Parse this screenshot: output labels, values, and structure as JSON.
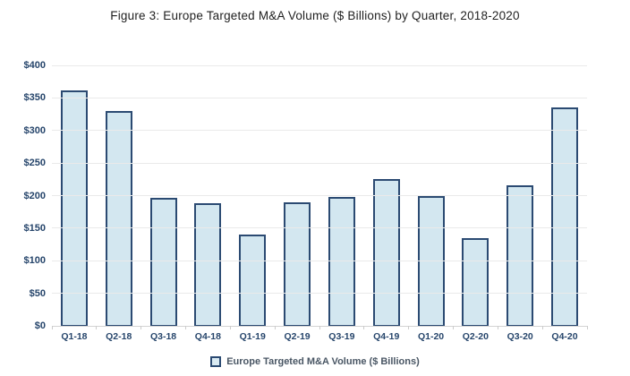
{
  "chart_data": {
    "type": "bar",
    "title": "Figure 3: Europe Targeted M&A Volume ($ Billions) by Quarter, 2018-2020",
    "categories": [
      "Q1-18",
      "Q2-18",
      "Q3-18",
      "Q4-18",
      "Q1-19",
      "Q2-19",
      "Q3-19",
      "Q4-19",
      "Q1-20",
      "Q2-20",
      "Q3-20",
      "Q4-20"
    ],
    "series": [
      {
        "name": "Europe Targeted M&A Volume ($ Billions)",
        "values": [
          361,
          330,
          197,
          189,
          140,
          190,
          198,
          226,
          200,
          135,
          216,
          336
        ]
      }
    ],
    "xlabel": "",
    "ylabel": "",
    "ylim": [
      0,
      400
    ],
    "ytick_interval": 50,
    "ytick_labels_top_to_bottom": [
      "$400",
      "$350",
      "$300",
      "$250",
      "$200",
      "$150",
      "$100",
      "$50",
      "$0"
    ],
    "grid": "horizontal",
    "legend_position": "bottom-center",
    "colors": {
      "bar_fill": "#D3E7F0",
      "bar_border": "#2B4A72",
      "axis_label_text": "#26456B",
      "title_text": "#1F1F1F",
      "legend_text": "#495664",
      "gridline": "#EAEAEA",
      "axis_line": "#D4D4D4"
    }
  }
}
